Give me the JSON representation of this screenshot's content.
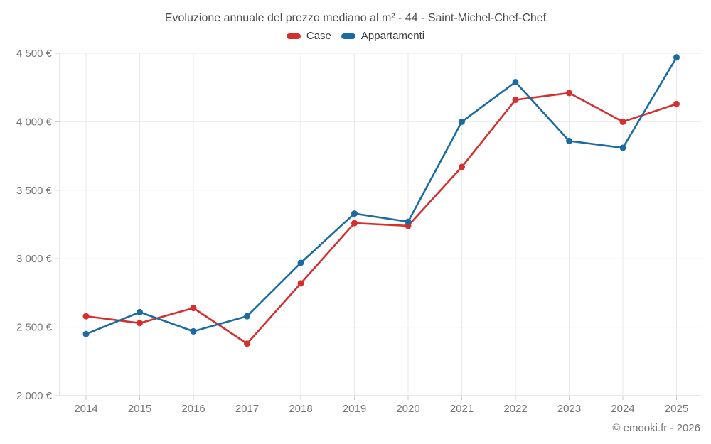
{
  "page": {
    "footer": "© emooki.fr - 2026"
  },
  "chart_data": {
    "type": "line",
    "title": "Evoluzione annuale del prezzo mediano al m² - 44 - Saint-Michel-Chef-Chef",
    "categories": [
      "2014",
      "2015",
      "2016",
      "2017",
      "2018",
      "2019",
      "2020",
      "2021",
      "2022",
      "2023",
      "2024",
      "2025"
    ],
    "series": [
      {
        "name": "Case",
        "color": "#d4302f",
        "values": [
          2580,
          2530,
          2640,
          2380,
          2820,
          3260,
          3240,
          3670,
          4160,
          4210,
          4000,
          4130
        ]
      },
      {
        "name": "Appartamenti",
        "color": "#1a6ba1",
        "values": [
          2450,
          2610,
          2470,
          2580,
          2970,
          3330,
          3270,
          4000,
          4290,
          3860,
          3810,
          4470
        ]
      }
    ],
    "xlabel": "",
    "ylabel": "",
    "ylim": [
      2000,
      4500
    ],
    "ytick_step": 500,
    "ytick_labels": [
      "2 000 €",
      "2 500 €",
      "3 000 €",
      "3 500 €",
      "4 000 €",
      "4 500 €"
    ],
    "grid": true,
    "legend_position": "top",
    "marker": "circle"
  },
  "colors": {
    "grid": "#e9e9e9",
    "axis": "#d2d2d2",
    "tick": "#c9c9c9",
    "axis_label": "#757575",
    "title": "#4b4b4b"
  }
}
